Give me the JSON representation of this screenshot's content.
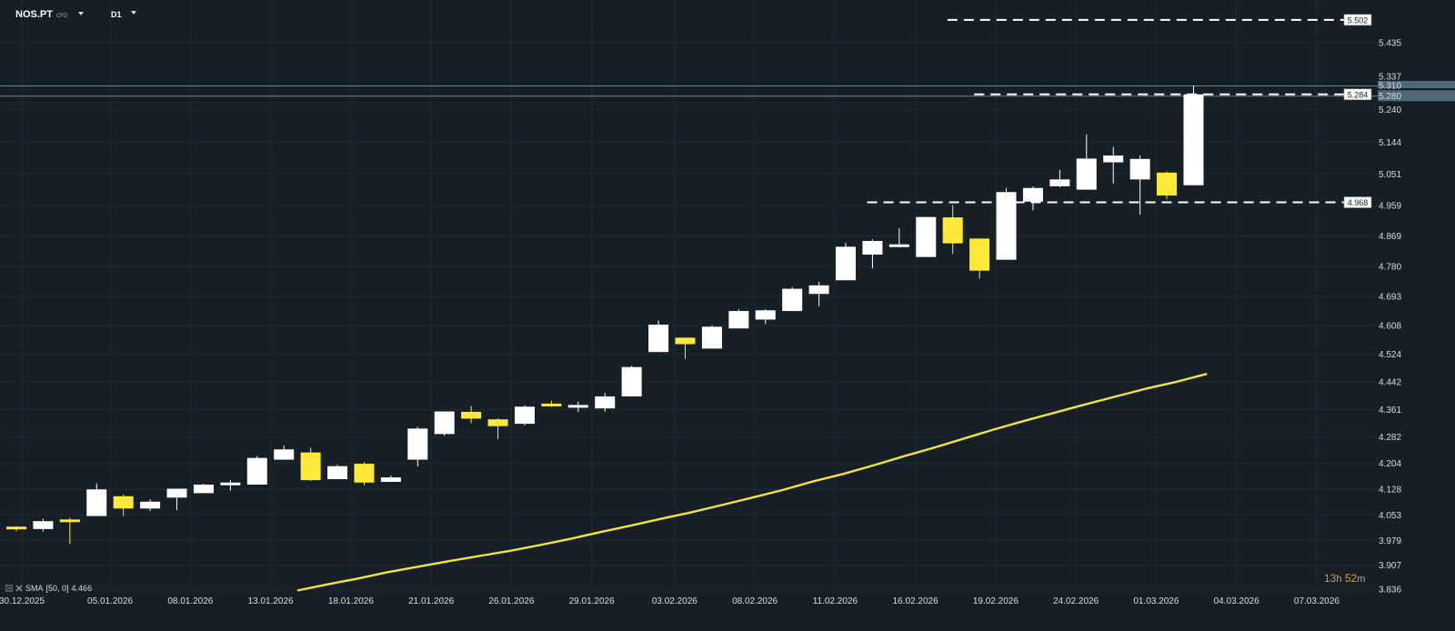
{
  "toolbar": {
    "symbol": "NOS.PT",
    "symbol_type": "CFD",
    "timeframe": "D1"
  },
  "colors": {
    "background": "#161f26",
    "bull_candle": "#ffffff",
    "bear_candle": "#ffe83a",
    "sma_line": "#f4e23d",
    "grid": "#1e2a33",
    "axis_text": "#d8dde2",
    "timer_hours": "#e59b2f"
  },
  "indicator": {
    "name": "SMA",
    "params": "[50, 0]",
    "value": "4.466"
  },
  "timer": {
    "hours": "13",
    "h_unit": "h",
    "minutes": "52",
    "m_unit": "m"
  },
  "chart_data": {
    "type": "candlestick",
    "symbol": "NOS.PT",
    "timeframe": "D1",
    "ylim": [
      3.836,
      5.55
    ],
    "y_ticks": [
      "5.435",
      "5.337",
      "5.310",
      "5.280",
      "5.240",
      "5.144",
      "5.051",
      "4.959",
      "4.869",
      "4.780",
      "4.693",
      "4.608",
      "4.524",
      "4.442",
      "4.361",
      "4.282",
      "4.204",
      "4.128",
      "4.053",
      "3.979",
      "3.907",
      "3.836"
    ],
    "x_ticks": [
      "30.12.2025",
      "05.01.2026",
      "08.01.2026",
      "13.01.2026",
      "18.01.2026",
      "21.01.2026",
      "26.01.2026",
      "29.01.2026",
      "03.02.2026",
      "08.02.2026",
      "11.02.2026",
      "16.02.2026",
      "19.02.2026",
      "24.02.2026",
      "01.03.2026",
      "04.03.2026",
      "07.03.2026"
    ],
    "candles": [
      {
        "o": 4.019,
        "h": 4.021,
        "l": 4.005,
        "c": 4.012
      },
      {
        "o": 4.012,
        "h": 4.042,
        "l": 4.005,
        "c": 4.035
      },
      {
        "o": 4.04,
        "h": 4.045,
        "l": 3.968,
        "c": 4.033
      },
      {
        "o": 4.05,
        "h": 4.146,
        "l": 4.05,
        "c": 4.128
      },
      {
        "o": 4.108,
        "h": 4.113,
        "l": 4.05,
        "c": 4.072
      },
      {
        "o": 4.072,
        "h": 4.099,
        "l": 4.065,
        "c": 4.092
      },
      {
        "o": 4.104,
        "h": 4.13,
        "l": 4.067,
        "c": 4.13
      },
      {
        "o": 4.117,
        "h": 4.145,
        "l": 4.117,
        "c": 4.142
      },
      {
        "o": 4.14,
        "h": 4.155,
        "l": 4.125,
        "c": 4.148
      },
      {
        "o": 4.142,
        "h": 4.226,
        "l": 4.142,
        "c": 4.22
      },
      {
        "o": 4.215,
        "h": 4.256,
        "l": 4.215,
        "c": 4.245
      },
      {
        "o": 4.236,
        "h": 4.25,
        "l": 4.153,
        "c": 4.155
      },
      {
        "o": 4.158,
        "h": 4.2,
        "l": 4.158,
        "c": 4.196
      },
      {
        "o": 4.203,
        "h": 4.208,
        "l": 4.14,
        "c": 4.148
      },
      {
        "o": 4.15,
        "h": 4.168,
        "l": 4.15,
        "c": 4.163
      },
      {
        "o": 4.215,
        "h": 4.311,
        "l": 4.195,
        "c": 4.306
      },
      {
        "o": 4.29,
        "h": 4.356,
        "l": 4.285,
        "c": 4.356
      },
      {
        "o": 4.355,
        "h": 4.372,
        "l": 4.322,
        "c": 4.335
      },
      {
        "o": 4.333,
        "h": 4.336,
        "l": 4.275,
        "c": 4.313
      },
      {
        "o": 4.32,
        "h": 4.374,
        "l": 4.315,
        "c": 4.37
      },
      {
        "o": 4.379,
        "h": 4.388,
        "l": 4.37,
        "c": 4.372
      },
      {
        "o": 4.368,
        "h": 4.385,
        "l": 4.354,
        "c": 4.375
      },
      {
        "o": 4.365,
        "h": 4.41,
        "l": 4.356,
        "c": 4.4
      },
      {
        "o": 4.4,
        "h": 4.49,
        "l": 4.4,
        "c": 4.486
      },
      {
        "o": 4.53,
        "h": 4.622,
        "l": 4.53,
        "c": 4.61
      },
      {
        "o": 4.572,
        "h": 4.572,
        "l": 4.51,
        "c": 4.553
      },
      {
        "o": 4.54,
        "h": 4.608,
        "l": 4.54,
        "c": 4.604
      },
      {
        "o": 4.599,
        "h": 4.655,
        "l": 4.599,
        "c": 4.65
      },
      {
        "o": 4.625,
        "h": 4.655,
        "l": 4.612,
        "c": 4.652
      },
      {
        "o": 4.65,
        "h": 4.72,
        "l": 4.65,
        "c": 4.715
      },
      {
        "o": 4.7,
        "h": 4.735,
        "l": 4.664,
        "c": 4.725
      },
      {
        "o": 4.74,
        "h": 4.85,
        "l": 4.74,
        "c": 4.838
      },
      {
        "o": 4.815,
        "h": 4.86,
        "l": 4.775,
        "c": 4.855
      },
      {
        "o": 4.84,
        "h": 4.892,
        "l": 4.837,
        "c": 4.845
      },
      {
        "o": 4.808,
        "h": 4.925,
        "l": 4.808,
        "c": 4.925
      },
      {
        "o": 4.924,
        "h": 4.96,
        "l": 4.817,
        "c": 4.848
      },
      {
        "o": 4.862,
        "h": 4.862,
        "l": 4.745,
        "c": 4.768
      },
      {
        "o": 4.8,
        "h": 5.01,
        "l": 4.8,
        "c": 4.998
      },
      {
        "o": 4.97,
        "h": 5.015,
        "l": 4.945,
        "c": 5.01
      },
      {
        "o": 5.015,
        "h": 5.063,
        "l": 5.012,
        "c": 5.035
      },
      {
        "o": 5.005,
        "h": 5.167,
        "l": 5.005,
        "c": 5.096
      },
      {
        "o": 5.085,
        "h": 5.13,
        "l": 5.023,
        "c": 5.105
      },
      {
        "o": 5.035,
        "h": 5.105,
        "l": 4.932,
        "c": 5.095
      },
      {
        "o": 5.055,
        "h": 5.058,
        "l": 4.978,
        "c": 4.988
      },
      {
        "o": 5.018,
        "h": 5.31,
        "l": 5.018,
        "c": 5.284
      }
    ],
    "sma_series": {
      "name": "SMA [50, 0]",
      "start_index": 10.5,
      "end_index": 44.5,
      "values": [
        3.832,
        3.85,
        3.867,
        3.886,
        3.902,
        3.918,
        3.933,
        3.948,
        3.965,
        3.983,
        4.003,
        4.022,
        4.042,
        4.061,
        4.082,
        4.104,
        4.126,
        4.151,
        4.173,
        4.198,
        4.225,
        4.25,
        4.277,
        4.304,
        4.329,
        4.353,
        4.377,
        4.4,
        4.423,
        4.443,
        4.466
      ]
    },
    "price_markers": [
      {
        "value": 5.502,
        "label": "5.502",
        "from_index": 34.8
      },
      {
        "value": 5.284,
        "label": "5.284",
        "from_index": 35.8
      },
      {
        "value": 4.968,
        "label": "4.968",
        "from_index": 31.8
      }
    ],
    "current_price": {
      "value": 5.28,
      "label": "5.280",
      "high": 5.31,
      "high_label": "5.310"
    }
  }
}
